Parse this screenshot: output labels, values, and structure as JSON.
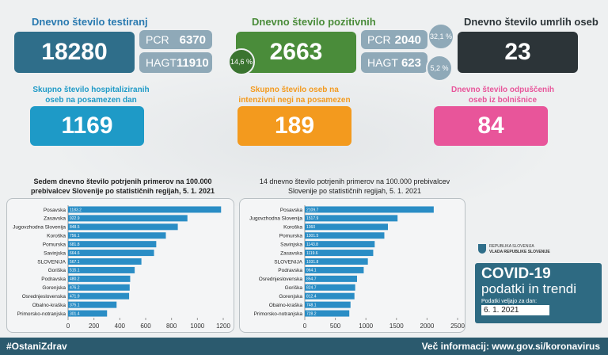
{
  "tests": {
    "title": "Dnevno število testiranj",
    "total": 18280,
    "pcr_label": "PCR",
    "pcr": 6370,
    "hagt_label": "HAGT",
    "hagt": 11910
  },
  "positive": {
    "title": "Dnevno število pozitivnih",
    "total": 2663,
    "share": "14,6 %",
    "pcr_label": "PCR",
    "pcr": 2040,
    "pcr_share": "32,1 %",
    "hagt_label": "HAGT",
    "hagt": 623,
    "hagt_share": "5,2 %"
  },
  "deaths": {
    "title": "Dnevno število umrlih oseb",
    "total": 23
  },
  "hospital": {
    "title": "Skupno število hospitaliziranih oseb na posamezen dan",
    "total": 1169
  },
  "icu": {
    "title": "Skupno število oseb na intenzivni negi na posamezen dan",
    "total": 189
  },
  "discharged": {
    "title": "Dnevno število odpuščenih oseb iz bolnišnice",
    "total": 84
  },
  "logo": {
    "line1": "REPUBLIKA SLOVENIJA",
    "line2": "VLADA REPUBLIKE SLOVENIJE"
  },
  "badge": {
    "title": "COVID-19",
    "subtitle": "podatki in trendi",
    "note": "Podatki veljajo za dan:",
    "date": "6. 1. 2021"
  },
  "footer": {
    "hashtag": "#OstaniZdrav",
    "info": "Več informacij: www.gov.si/koronavirus"
  },
  "chart_data": [
    {
      "type": "bar",
      "horizontal": true,
      "title": "Sedem dnevno število potrjenih primerov na 100.000 prebivalcev Slovenije po statističnih regijah, 5. 1. 2021",
      "color": "#2a8dc5",
      "categories": [
        "Posavska",
        "Zasavska",
        "Jugovzhodna Slovenija",
        "Koroška",
        "Pomurska",
        "Savinjska",
        "SLOVENIJA",
        "Goriška",
        "Podravska",
        "Gorenjska",
        "Osrednjeslovenska",
        "Obalno-kraška",
        "Primorsko-notranjska"
      ],
      "values": [
        1183.2,
        922.9,
        848.5,
        756.1,
        681.8,
        664.6,
        567.1,
        515.1,
        480.2,
        476.2,
        471.9,
        375.1,
        301.4
      ],
      "xlim": [
        0,
        1200
      ],
      "xticks": [
        0,
        200,
        400,
        600,
        800,
        1000,
        1200
      ]
    },
    {
      "type": "bar",
      "horizontal": true,
      "title": "14 dnevno število potrjenih primerov na 100.000 prebivalcev Slovenije po statističnih regijah, 5. 1. 2021",
      "color": "#2a8dc5",
      "categories": [
        "Posavska",
        "Jugovzhodna Slovenija",
        "Koroška",
        "Pomurska",
        "Savinjska",
        "Zasavska",
        "SLOVENIJA",
        "Podravska",
        "Osrednjeslovenska",
        "Goriška",
        "Gorenjska",
        "Obalno-kraška",
        "Primorsko-notranjska"
      ],
      "values": [
        2109.7,
        1517.9,
        1360,
        1301.5,
        1143.8,
        1119.6,
        1031.8,
        964.1,
        854.7,
        824.7,
        812.4,
        748.1,
        728.2
      ],
      "xlim": [
        0,
        2500
      ],
      "xticks": [
        0,
        500,
        1000,
        1500,
        2000,
        2500
      ]
    }
  ]
}
